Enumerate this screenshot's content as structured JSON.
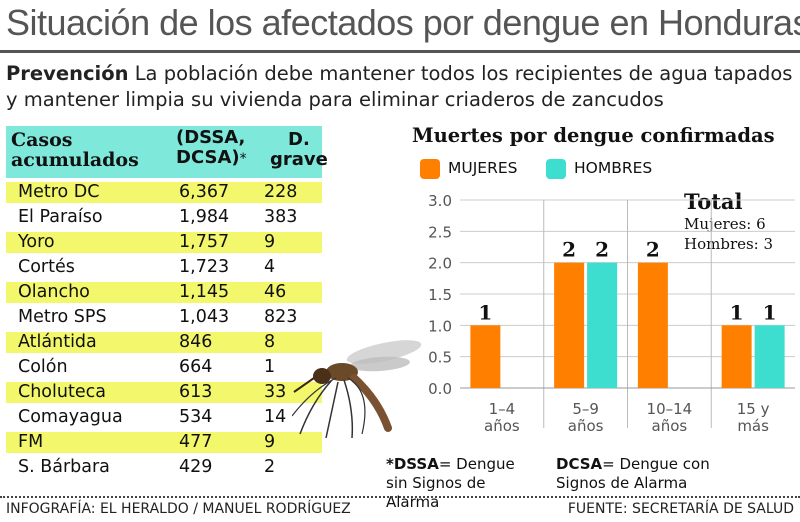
{
  "title": "Situación de los afectados por dengue en Honduras",
  "prevention": {
    "label": "Prevención",
    "text": "La población debe mantener todos los recipientes de agua tapados y mantener limpia su vivienda para eliminar criaderos de zancudos"
  },
  "table": {
    "headers": {
      "casos": [
        "Casos",
        "acumulados"
      ],
      "dssa": [
        "(DSSA,",
        "DCSA)"
      ],
      "dssa_mark": "*",
      "grave": [
        "D.",
        "grave"
      ]
    },
    "rows": [
      {
        "name": "Metro DC",
        "cases": "6,367",
        "grave": "228",
        "highlight": true
      },
      {
        "name": "El Paraíso",
        "cases": "1,984",
        "grave": "383",
        "highlight": false
      },
      {
        "name": "Yoro",
        "cases": "1,757",
        "grave": "9",
        "highlight": true
      },
      {
        "name": "Cortés",
        "cases": "1,723",
        "grave": "4",
        "highlight": false
      },
      {
        "name": "Olancho",
        "cases": "1,145",
        "grave": "46",
        "highlight": true
      },
      {
        "name": "Metro SPS",
        "cases": "1,043",
        "grave": "823",
        "highlight": false
      },
      {
        "name": "Atlántida",
        "cases": "846",
        "grave": "8",
        "highlight": true
      },
      {
        "name": "Colón",
        "cases": "664",
        "grave": "1",
        "highlight": false
      },
      {
        "name": "Choluteca",
        "cases": "613",
        "grave": "33",
        "highlight": true
      },
      {
        "name": "Comayagua",
        "cases": "534",
        "grave": "14",
        "highlight": false
      },
      {
        "name": "FM",
        "cases": "477",
        "grave": "9",
        "highlight": true
      },
      {
        "name": "S. Bárbara",
        "cases": "429",
        "grave": "2",
        "highlight": false
      }
    ],
    "highlight_color": "#f3f76b",
    "header_color": "#7ee8db"
  },
  "chart_data": {
    "type": "bar",
    "title": "Muertes por dengue confirmadas",
    "categories": [
      [
        "1–4",
        "años"
      ],
      [
        "5–9",
        "años"
      ],
      [
        "10–14",
        "años"
      ],
      [
        "15 y",
        "más"
      ]
    ],
    "series": [
      {
        "name": "MUJERES",
        "color": "#ff8000",
        "values": [
          1,
          2,
          2,
          1
        ]
      },
      {
        "name": "HOMBRES",
        "color": "#3dded0",
        "values": [
          0,
          2,
          0,
          1
        ]
      }
    ],
    "ylim": [
      0,
      3
    ],
    "yticks": [
      "0.0",
      "0.5",
      "1.0",
      "1.5",
      "2.0",
      "2.5",
      "3.0"
    ],
    "grid": true,
    "legend": "top",
    "totals": {
      "title": "Total",
      "lines": [
        "Mujeres: 6",
        "Hombres: 3"
      ]
    }
  },
  "notes": {
    "dssa": {
      "term": "*DSSA",
      "text": "= Dengue sin Signos de Alarma"
    },
    "dcsa": {
      "term": "DCSA",
      "text": "= Dengue con Signos de Alarma"
    }
  },
  "credits": {
    "left": "INFOGRAFÍA: EL HERALDO / MANUEL RODRÍGUEZ",
    "right": "FUENTE: SECRETARÍA DE SALUD"
  }
}
